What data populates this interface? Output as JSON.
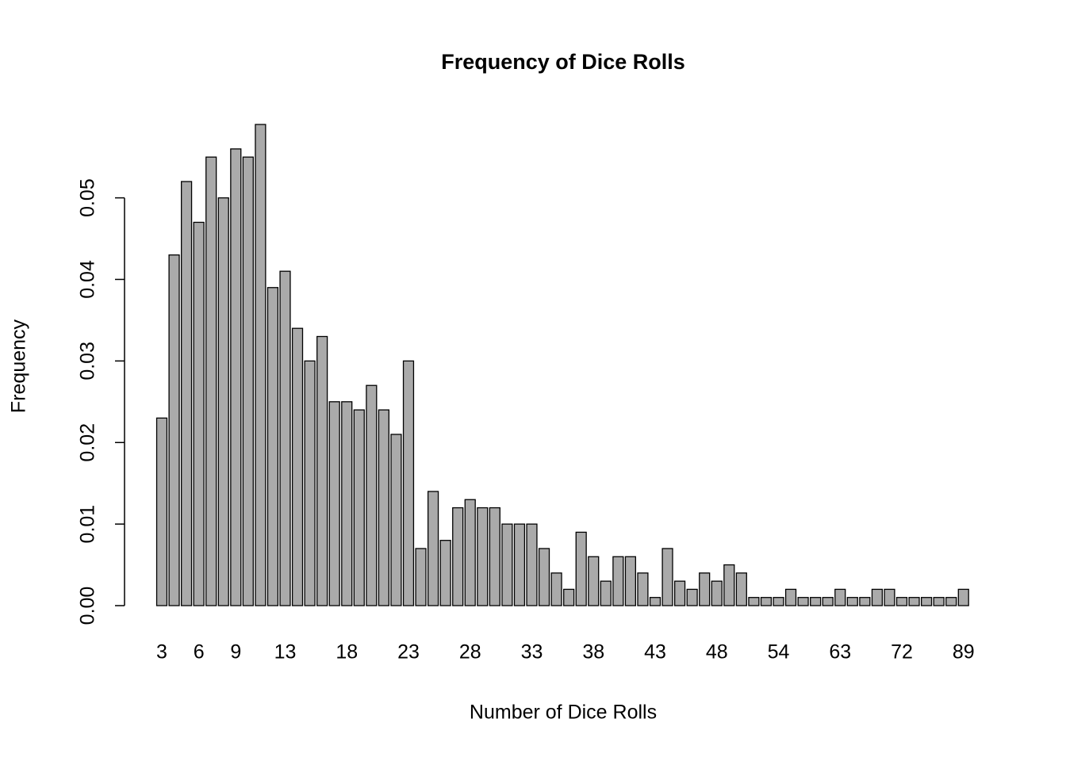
{
  "chart_data": {
    "type": "bar",
    "title": "Frequency of Dice Rolls",
    "x_label": "Number of Dice Rolls",
    "y_label": "Frequency",
    "color": "#aaaaaa",
    "categories": [
      "3",
      null,
      null,
      "6",
      null,
      null,
      "9",
      null,
      null,
      null,
      "13",
      null,
      null,
      null,
      null,
      "18",
      null,
      null,
      null,
      null,
      "23",
      null,
      null,
      null,
      null,
      "28",
      null,
      null,
      null,
      null,
      "33",
      null,
      null,
      null,
      null,
      "38",
      null,
      null,
      null,
      null,
      "43",
      null,
      null,
      null,
      null,
      "48",
      null,
      null,
      null,
      null,
      "54",
      null,
      null,
      null,
      null,
      "63",
      null,
      null,
      null,
      null,
      "72",
      null,
      null,
      null,
      null,
      "89"
    ],
    "values": [
      0.023,
      0.043,
      0.052,
      0.047,
      0.055,
      0.05,
      0.056,
      0.055,
      0.059,
      0.039,
      0.041,
      0.034,
      0.03,
      0.033,
      0.025,
      0.025,
      0.024,
      0.027,
      0.024,
      0.021,
      0.03,
      0.007,
      0.014,
      0.008,
      0.012,
      0.013,
      0.012,
      0.012,
      0.01,
      0.01,
      0.01,
      0.007,
      0.004,
      0.002,
      0.009,
      0.006,
      0.003,
      0.006,
      0.006,
      0.004,
      0.001,
      0.007,
      0.003,
      0.002,
      0.004,
      0.003,
      0.005,
      0.004,
      0.001,
      0.001,
      0.001,
      0.002,
      0.001,
      0.001,
      0.001,
      0.002,
      0.001,
      0.001,
      0.002,
      0.002,
      0.001,
      0.001,
      0.001,
      0.001,
      0.001,
      0.002
    ],
    "ylim": [
      0,
      0.059
    ],
    "yticks": [
      {
        "value": 0,
        "label": "0.00"
      },
      0.01,
      0.02,
      0.03,
      0.04,
      0.05
    ]
  }
}
